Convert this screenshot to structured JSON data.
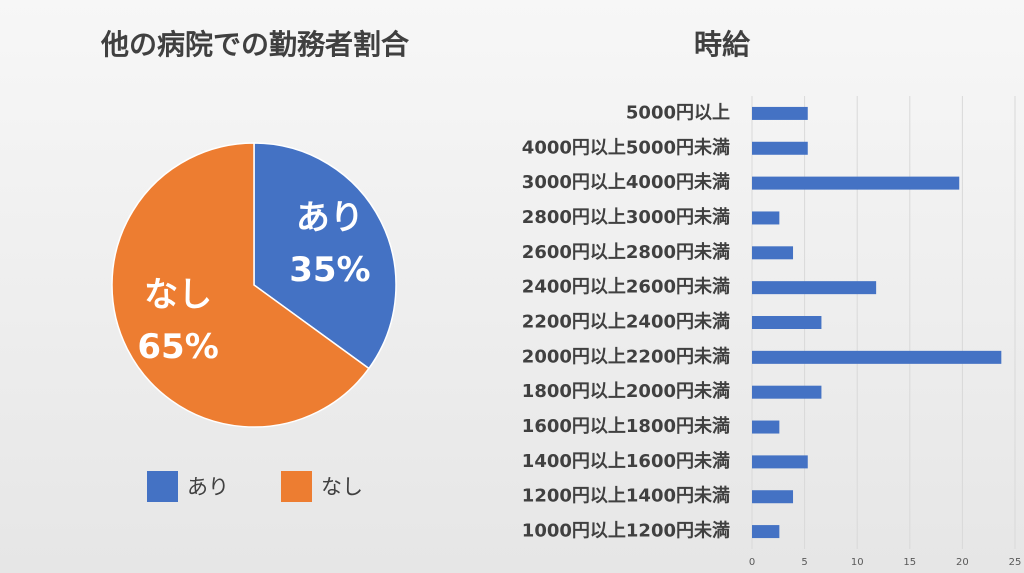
{
  "chart_data": [
    {
      "type": "pie",
      "title": "他の病院での勤務者割合",
      "categories": [
        "あり",
        "なし"
      ],
      "values": [
        35,
        65
      ],
      "value_labels": [
        "35%",
        "65%"
      ],
      "colors": [
        "#4472c4",
        "#ed7d31"
      ],
      "legend": "bottom"
    },
    {
      "type": "barh",
      "title": "時給",
      "categories": [
        "5000円以上",
        "4000円以上5000円未満",
        "3000円以上4000円未満",
        "2800円以上3000円未満",
        "2600円以上2800円未満",
        "2400円以上2600円未満",
        "2200円以上2400円未満",
        "2000円以上2200円未満",
        "1800円以上2000円未満",
        "1600円以上1800円未満",
        "1400円以上1600円未満",
        "1200円以上1400円未満",
        "1000円以上1200円未満"
      ],
      "values": [
        5.3,
        5.3,
        19.7,
        2.6,
        3.9,
        11.8,
        6.6,
        23.7,
        6.6,
        2.6,
        5.3,
        3.9,
        2.6
      ],
      "color": "#4472c4",
      "xlim": [
        0,
        25
      ],
      "xticks": [
        0,
        5,
        10,
        15,
        20,
        25
      ],
      "grid": true
    }
  ]
}
